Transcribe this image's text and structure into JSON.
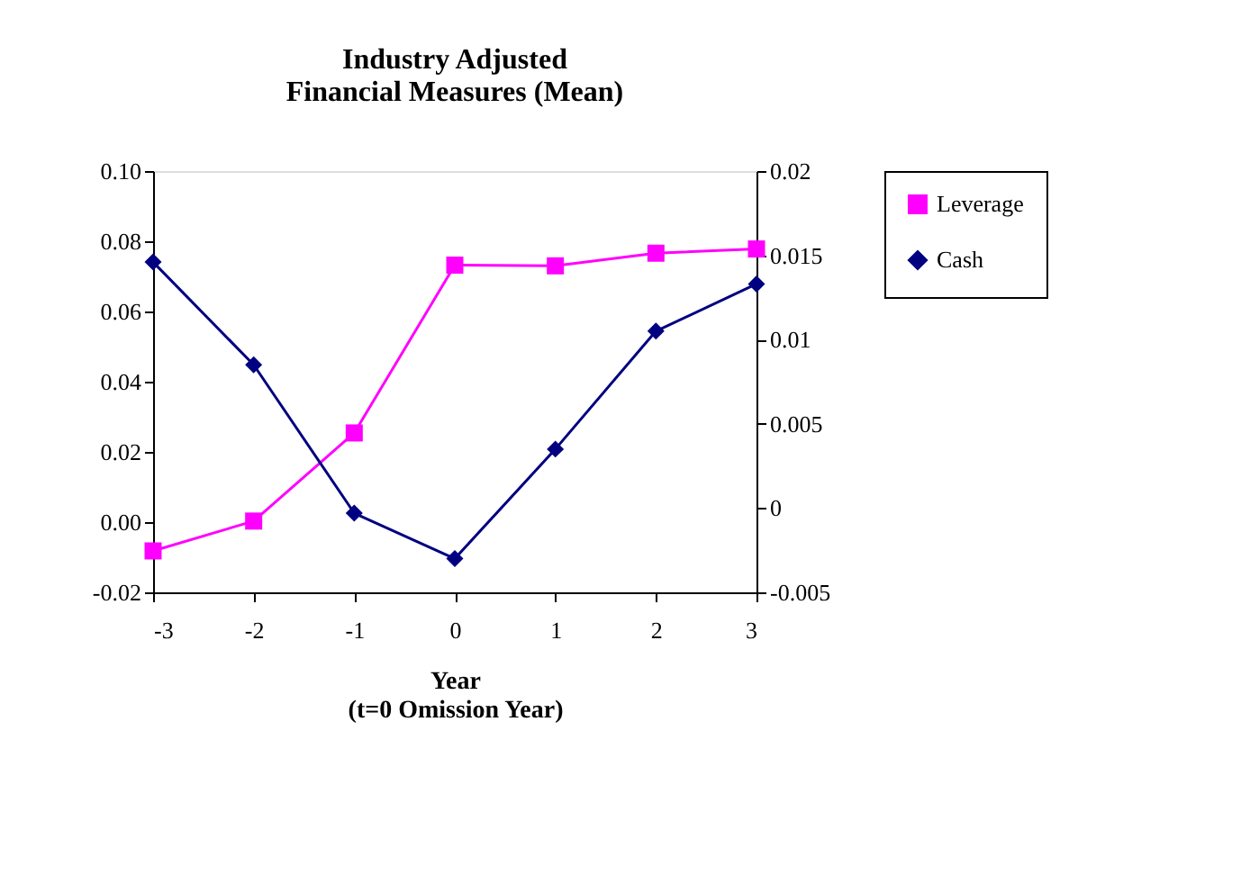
{
  "chart_data": {
    "type": "line",
    "title": [
      "Industry Adjusted",
      "Financial Measures (Mean)"
    ],
    "xlabel": [
      "Year",
      "(t=0 Omission Year)"
    ],
    "x": [
      -3,
      -2,
      -1,
      0,
      1,
      2,
      3
    ],
    "xlim": [
      -3,
      3
    ],
    "xticks": [
      -3,
      -2,
      -1,
      0,
      1,
      2,
      3
    ],
    "ylim": [
      -0.02,
      0.1
    ],
    "yticks": [
      {
        "value": -0.02,
        "label": "-0.02"
      },
      {
        "value": 0,
        "label": "0.00"
      },
      {
        "value": 0.02,
        "label": "0.02"
      },
      {
        "value": 0.04,
        "label": "0.04"
      },
      {
        "value": 0.06,
        "label": "0.06"
      },
      {
        "value": 0.08,
        "label": "0.08"
      },
      {
        "value": 0.1,
        "label": "0.10"
      }
    ],
    "y2lim": [
      -0.005,
      0.02
    ],
    "y2ticks": [
      -0.005,
      0,
      0.005,
      0.01,
      0.015,
      0.02
    ],
    "series": [
      {
        "name": "Leverage",
        "color": "#ff00ff",
        "marker": "square",
        "values": [
          -0.0082,
          0.0003,
          0.0254,
          0.0732,
          0.073,
          0.0766,
          0.0778
        ]
      },
      {
        "name": "Cash",
        "color": "#000080",
        "marker": "diamond",
        "axis": "y2",
        "values": [
          0.0146,
          0.0085,
          -0.0003,
          -0.003,
          0.0035,
          0.0105,
          0.0133
        ]
      }
    ],
    "grid": false,
    "legend": "right"
  }
}
